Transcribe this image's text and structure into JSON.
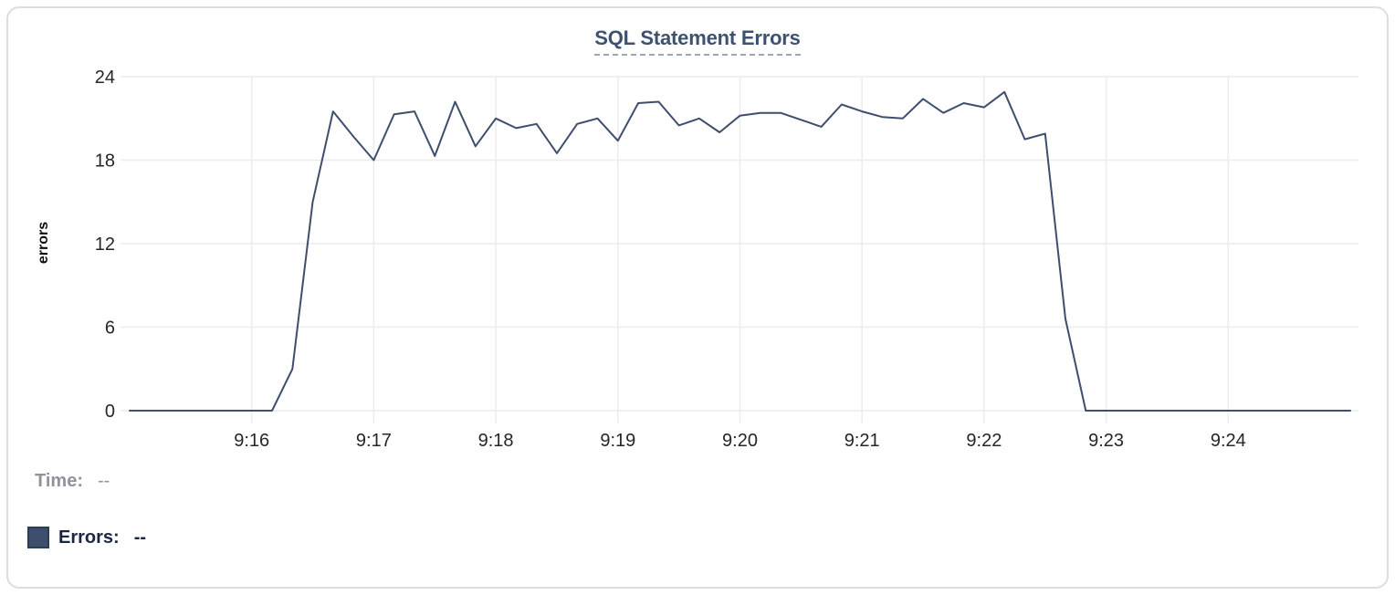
{
  "chart_data": {
    "type": "line",
    "title": "SQL Statement Errors",
    "xlabel": "",
    "ylabel": "errors",
    "x_start": "9:15:00",
    "x_interval_seconds": 10,
    "x_tick_labels": [
      "9:16",
      "9:17",
      "9:18",
      "9:19",
      "9:20",
      "9:21",
      "9:22",
      "9:23",
      "9:24"
    ],
    "y_ticks": [
      0,
      6,
      12,
      18,
      24
    ],
    "ylim": [
      0,
      24
    ],
    "grid": true,
    "legend_position": "bottom-left",
    "series": [
      {
        "name": "Errors",
        "color": "#3E4E6D",
        "values": [
          0,
          0,
          0,
          0,
          0,
          0,
          0,
          0,
          3,
          15,
          21.5,
          19.7,
          18,
          21.3,
          21.5,
          18.3,
          22.2,
          19,
          21,
          20.3,
          20.6,
          18.5,
          20.6,
          21,
          19.4,
          22.1,
          22.2,
          20.5,
          21,
          20,
          21.2,
          21.4,
          21.4,
          20.9,
          20.4,
          22,
          21.5,
          21.1,
          21,
          22.4,
          21.4,
          22.1,
          21.8,
          22.9,
          19.5,
          19.9,
          6.6,
          0,
          0,
          0,
          0,
          0,
          0,
          0,
          0,
          0,
          0,
          0,
          0,
          0,
          0
        ]
      }
    ]
  },
  "tooltip_readout": {
    "time_label": "Time:",
    "time_value": "--",
    "errors_label": "Errors:",
    "errors_value": "--"
  },
  "colors": {
    "line": "#3E4E6D",
    "title_text": "#3D5170",
    "title_underline": "#9AA5B8",
    "grid": "#ECECEC",
    "tick_text": "#262626",
    "time_text": "#8E939C",
    "errors_text": "#1C2642",
    "swatch_fill": "#3E4E6D",
    "swatch_border": "#2E3C58",
    "card_border": "#DCDDDF"
  }
}
